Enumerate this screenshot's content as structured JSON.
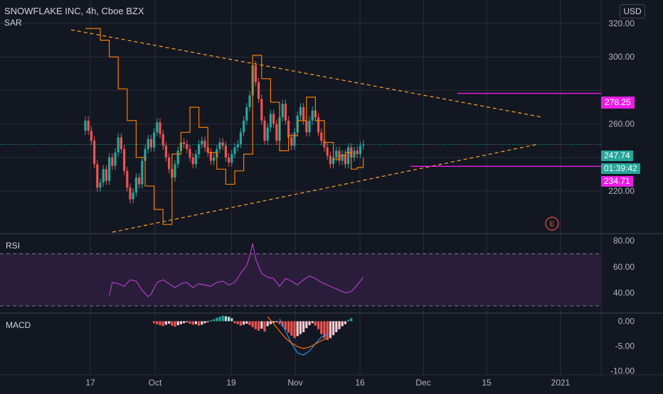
{
  "header": {
    "symbol_line": "SNOWFLAKE INC, 4h, Cboe BZX",
    "indicator": "SAR",
    "currency_button": "USD"
  },
  "colors": {
    "background": "#131722",
    "grid": "#2a2e39",
    "up": "#26a69a",
    "down": "#ef5350",
    "sar": "#f57c00",
    "trendline": "#ffa726",
    "level": "#e91ee6",
    "rsi": "#b03cc9",
    "rsi_band": "#2a1d3a",
    "macd_line": "#2196f3",
    "signal_line": "#ff6d00"
  },
  "price_tags": {
    "current": "247.74",
    "countdown": "01:39:42",
    "upper_level": "278.25",
    "lower_level": "234.71"
  },
  "earnings_marker": "E",
  "chart_data": [
    {
      "type": "line",
      "title": "SNOWFLAKE INC, 4h, Cboe BZX",
      "subtitle": "SAR",
      "x_ticks": [
        "17",
        "Oct",
        "19",
        "Nov",
        "16",
        "Dec",
        "15",
        "2021"
      ],
      "y_ticks": [
        "320.00",
        "300.00",
        "260.00",
        "220.00"
      ],
      "ylim": [
        195,
        334
      ],
      "series": [
        {
          "name": "Close",
          "values": [
            [
              1,
              262
            ],
            [
              2,
              256
            ],
            [
              3,
              250
            ],
            [
              4,
              236
            ],
            [
              5,
              222
            ],
            [
              6,
              225
            ],
            [
              7,
              233
            ],
            [
              8,
              226
            ],
            [
              9,
              240
            ],
            [
              10,
              235
            ],
            [
              11,
              243
            ],
            [
              12,
              252
            ],
            [
              13,
              245
            ],
            [
              14,
              232
            ],
            [
              15,
              222
            ],
            [
              16,
              215
            ],
            [
              17,
              219
            ],
            [
              18,
              228
            ],
            [
              19,
              224
            ],
            [
              20,
              238
            ],
            [
              21,
              245
            ],
            [
              22,
              251
            ],
            [
              23,
              246
            ],
            [
              24,
              255
            ],
            [
              25,
              261
            ],
            [
              26,
              254
            ],
            [
              27,
              247
            ],
            [
              28,
              240
            ],
            [
              29,
              233
            ],
            [
              30,
              228
            ],
            [
              31,
              236
            ],
            [
              32,
              244
            ],
            [
              33,
              249
            ],
            [
              34,
              248
            ],
            [
              35,
              245
            ],
            [
              36,
              240
            ],
            [
              37,
              236
            ],
            [
              38,
              242
            ],
            [
              39,
              248
            ],
            [
              40,
              250
            ],
            [
              41,
              246
            ],
            [
              42,
              243
            ],
            [
              43,
              238
            ],
            [
              44,
              240
            ],
            [
              45,
              245
            ],
            [
              46,
              249
            ],
            [
              47,
              247
            ],
            [
              48,
              240
            ],
            [
              49,
              237
            ],
            [
              50,
              242
            ],
            [
              51,
              246
            ],
            [
              52,
              248
            ],
            [
              53,
              255
            ],
            [
              54,
              262
            ],
            [
              55,
              270
            ],
            [
              56,
              277
            ],
            [
              57,
              295
            ],
            [
              58,
              285
            ],
            [
              59,
              275
            ],
            [
              60,
              262
            ],
            [
              61,
              250
            ],
            [
              62,
              258
            ],
            [
              63,
              266
            ],
            [
              64,
              260
            ],
            [
              65,
              250
            ],
            [
              66,
              264
            ],
            [
              67,
              272
            ],
            [
              68,
              262
            ],
            [
              69,
              252
            ],
            [
              70,
              247
            ],
            [
              71,
              255
            ],
            [
              72,
              265
            ],
            [
              73,
              270
            ],
            [
              74,
              262
            ],
            [
              75,
              255
            ],
            [
              76,
              262
            ],
            [
              77,
              268
            ],
            [
              78,
              264
            ],
            [
              79,
              255
            ],
            [
              80,
              250
            ],
            [
              81,
              246
            ],
            [
              82,
              241
            ],
            [
              83,
              236
            ],
            [
              84,
              240
            ],
            [
              85,
              244
            ],
            [
              86,
              238
            ],
            [
              87,
              242
            ],
            [
              88,
              236
            ],
            [
              89,
              246
            ],
            [
              90,
              240
            ],
            [
              91,
              244
            ],
            [
              92,
              242
            ],
            [
              93,
              247
            ],
            [
              94,
              247.74
            ]
          ]
        },
        {
          "name": "SAR",
          "values": [
            [
              1,
              317
            ],
            [
              6,
              310
            ],
            [
              9,
              300
            ],
            [
              12,
              281
            ],
            [
              15,
              262
            ],
            [
              18,
              240
            ],
            [
              21,
              223
            ],
            [
              24,
              209
            ],
            [
              27,
              200
            ],
            [
              30,
              242
            ],
            [
              33,
              255
            ],
            [
              36,
              270
            ],
            [
              39,
              258
            ],
            [
              42,
              243
            ],
            [
              45,
              233
            ],
            [
              48,
              224
            ],
            [
              51,
              232
            ],
            [
              54,
              242
            ],
            [
              57,
              301
            ],
            [
              60,
              287
            ],
            [
              63,
              273
            ],
            [
              66,
              244
            ],
            [
              69,
              253
            ],
            [
              72,
              262
            ],
            [
              75,
              276
            ],
            [
              78,
              262
            ],
            [
              81,
              249
            ],
            [
              84,
              239
            ],
            [
              86,
              241
            ],
            [
              88,
              243
            ],
            [
              90,
              233
            ],
            [
              92,
              234
            ],
            [
              94,
              240
            ]
          ]
        }
      ],
      "annotations": [
        "278.25",
        "234.71",
        "E"
      ]
    },
    {
      "type": "line",
      "title": "RSI",
      "y_ticks": [
        "80.00",
        "60.00",
        "40.00"
      ],
      "ylim": [
        25,
        85
      ],
      "bands": [
        30,
        70
      ],
      "series": [
        {
          "name": "RSI",
          "values": [
            [
              9,
              38
            ],
            [
              10,
              48
            ],
            [
              12,
              47
            ],
            [
              14,
              45
            ],
            [
              16,
              50
            ],
            [
              18,
              49
            ],
            [
              20,
              42
            ],
            [
              22,
              37
            ],
            [
              23,
              39
            ],
            [
              25,
              48
            ],
            [
              27,
              50
            ],
            [
              29,
              47
            ],
            [
              31,
              44
            ],
            [
              33,
              47
            ],
            [
              35,
              48
            ],
            [
              37,
              44
            ],
            [
              39,
              47
            ],
            [
              41,
              46
            ],
            [
              43,
              45
            ],
            [
              45,
              48
            ],
            [
              47,
              49
            ],
            [
              49,
              46
            ],
            [
              51,
              48
            ],
            [
              53,
              55
            ],
            [
              55,
              61
            ],
            [
              56,
              68
            ],
            [
              57,
              78
            ],
            [
              58,
              66
            ],
            [
              60,
              55
            ],
            [
              62,
              52
            ],
            [
              64,
              51
            ],
            [
              66,
              45
            ],
            [
              68,
              51
            ],
            [
              70,
              49
            ],
            [
              72,
              46
            ],
            [
              74,
              50
            ],
            [
              76,
              53
            ],
            [
              78,
              51
            ],
            [
              80,
              48
            ],
            [
              82,
              46
            ],
            [
              84,
              44
            ],
            [
              86,
              42
            ],
            [
              88,
              40
            ],
            [
              90,
              41
            ],
            [
              92,
              46
            ],
            [
              94,
              52
            ]
          ]
        }
      ]
    },
    {
      "type": "bar",
      "title": "MACD",
      "y_ticks": [
        "0.00",
        "-5.00",
        "-10.00"
      ],
      "ylim": [
        -10.8,
        1.5
      ],
      "series": [
        {
          "name": "Histogram",
          "values": [
            [
              24,
              -0.4
            ],
            [
              25,
              -0.6
            ],
            [
              26,
              -0.8
            ],
            [
              27,
              -1.0
            ],
            [
              28,
              -0.7
            ],
            [
              29,
              -0.5
            ],
            [
              30,
              -0.9
            ],
            [
              31,
              -1.1
            ],
            [
              32,
              -0.8
            ],
            [
              33,
              -0.6
            ],
            [
              34,
              -0.4
            ],
            [
              35,
              -0.2
            ],
            [
              36,
              -0.5
            ],
            [
              37,
              -0.7
            ],
            [
              38,
              -0.6
            ],
            [
              39,
              -0.9
            ],
            [
              40,
              -0.7
            ],
            [
              41,
              -0.4
            ],
            [
              42,
              -0.2
            ],
            [
              43,
              0.2
            ],
            [
              44,
              0.4
            ],
            [
              45,
              0.7
            ],
            [
              46,
              0.9
            ],
            [
              47,
              1.1
            ],
            [
              48,
              1.0
            ],
            [
              49,
              0.9
            ],
            [
              50,
              0.6
            ],
            [
              51,
              -0.4
            ],
            [
              52,
              -0.6
            ],
            [
              53,
              -0.9
            ],
            [
              54,
              -0.7
            ],
            [
              55,
              -0.5
            ],
            [
              56,
              -0.8
            ],
            [
              57,
              -1.2
            ],
            [
              58,
              -1.6
            ],
            [
              59,
              -1.9
            ],
            [
              60,
              -1.5
            ],
            [
              61,
              -2.1
            ],
            [
              62,
              -1.0
            ],
            [
              63,
              -0.6
            ],
            [
              64,
              -0.3
            ],
            [
              65,
              -0.2
            ],
            [
              66,
              -0.6
            ],
            [
              67,
              -1.1
            ],
            [
              68,
              -1.7
            ],
            [
              69,
              -2.3
            ],
            [
              70,
              -2.9
            ],
            [
              71,
              -3.4
            ],
            [
              72,
              -3.0
            ],
            [
              73,
              -2.6
            ],
            [
              74,
              -2.2
            ],
            [
              75,
              -1.4
            ],
            [
              76,
              -0.8
            ],
            [
              77,
              -0.4
            ],
            [
              78,
              -0.9
            ],
            [
              79,
              -1.6
            ],
            [
              80,
              -2.6
            ],
            [
              81,
              -3.4
            ],
            [
              82,
              -3.8
            ],
            [
              83,
              -3.4
            ],
            [
              84,
              -2.8
            ],
            [
              85,
              -2.2
            ],
            [
              86,
              -1.6
            ],
            [
              87,
              -1.0
            ],
            [
              88,
              -0.6
            ],
            [
              89,
              0.3
            ],
            [
              90,
              0.6
            ]
          ]
        },
        {
          "name": "MACD",
          "values": [
            [
              66,
              0.5
            ],
            [
              68,
              -2.0
            ],
            [
              70,
              -4.5
            ],
            [
              72,
              -6.4
            ],
            [
              74,
              -6.8
            ],
            [
              76,
              -6.0
            ],
            [
              78,
              -4.5
            ],
            [
              80,
              -3.2
            ],
            [
              82,
              -2.6
            ]
          ]
        },
        {
          "name": "Signal",
          "values": [
            [
              62,
              0.9
            ],
            [
              64,
              -0.5
            ],
            [
              66,
              -2.0
            ],
            [
              68,
              -3.4
            ],
            [
              70,
              -4.4
            ],
            [
              72,
              -5.1
            ],
            [
              74,
              -5.5
            ],
            [
              76,
              -5.2
            ],
            [
              78,
              -4.6
            ],
            [
              80,
              -3.9
            ],
            [
              82,
              -3.4
            ]
          ]
        }
      ]
    }
  ]
}
